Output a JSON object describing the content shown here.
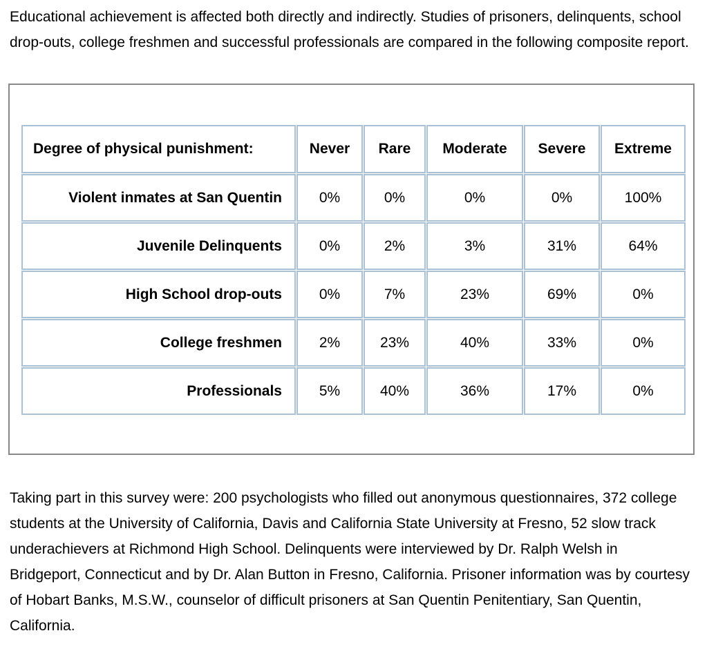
{
  "intro_paragraph": "Educational achievement is affected both directly and indirectly. Studies of prisoners, delinquents, school drop-outs, college freshmen and successful professionals are compared in the following composite report.",
  "table": {
    "header": {
      "label": "Degree of physical punishment:",
      "columns": [
        "Never",
        "Rare",
        "Moderate",
        "Severe",
        "Extreme"
      ]
    },
    "rows": [
      {
        "label": "Violent inmates at San Quentin",
        "values": [
          "0%",
          "0%",
          "0%",
          "0%",
          "100%"
        ]
      },
      {
        "label": "Juvenile Delinquents",
        "values": [
          "0%",
          "2%",
          "3%",
          "31%",
          "64%"
        ]
      },
      {
        "label": "High School drop-outs",
        "values": [
          "0%",
          "7%",
          "23%",
          "69%",
          "0%"
        ]
      },
      {
        "label": "College freshmen",
        "values": [
          "2%",
          "23%",
          "40%",
          "33%",
          "0%"
        ]
      },
      {
        "label": "Professionals",
        "values": [
          "5%",
          "40%",
          "36%",
          "17%",
          "0%"
        ]
      }
    ]
  },
  "footer_paragraph": "Taking part in this survey were: 200 psychologists who filled out anonymous questionnaires, 372 college students at the University of California, Davis and California State University at Fresno, 52 slow track underachievers at Richmond High School. Delinquents were interviewed by Dr. Ralph Welsh in Bridgeport, Connecticut and by Dr. Alan Button in Fresno, California. Prisoner information was by courtesy of Hobart Banks, M.S.W., counselor of difficult prisoners at San Quentin Penitentiary, San Quentin, California.",
  "colors": {
    "cell_border": "#aac0d5",
    "frame_border": "#878787",
    "text": "#000000",
    "background": "#ffffff"
  }
}
